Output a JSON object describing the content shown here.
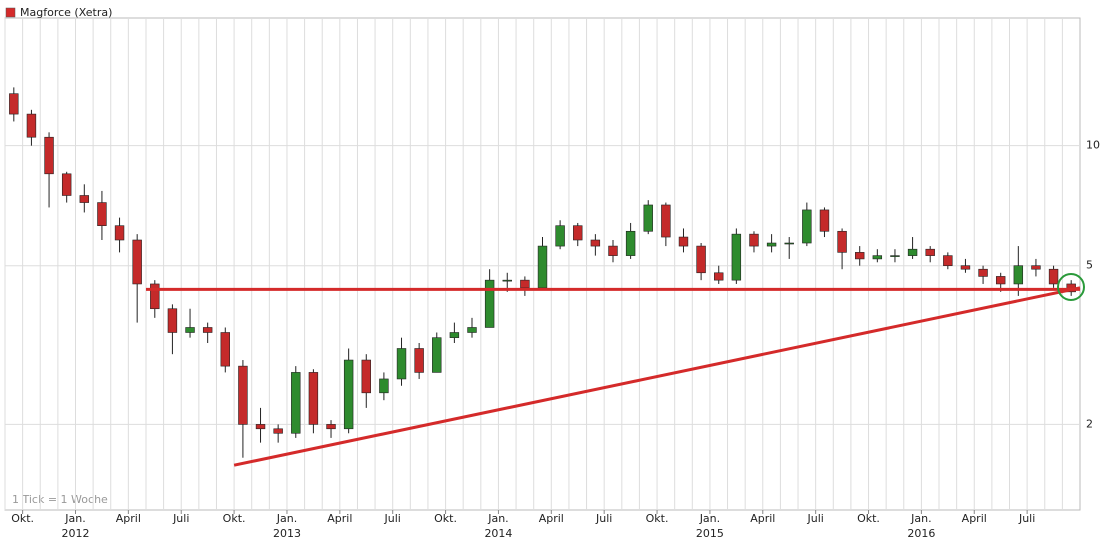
{
  "chart_data": {
    "type": "candlestick",
    "title": "Magforce (Xetra)",
    "note": "1 Tick = 1 Woche",
    "log_scale": true,
    "grid": true,
    "up_color": "#2e8b2e",
    "down_color": "#c42a2a",
    "title_color": "#d42a2a",
    "x": [
      "2011-09",
      "2011-10",
      "2011-11",
      "2011-12",
      "2012-01",
      "2012-02",
      "2012-03",
      "2012-04",
      "2012-05",
      "2012-06",
      "2012-07",
      "2012-08",
      "2012-09",
      "2012-10",
      "2012-11",
      "2012-12",
      "2013-01",
      "2013-02",
      "2013-03",
      "2013-04",
      "2013-05",
      "2013-06",
      "2013-07",
      "2013-08",
      "2013-09",
      "2013-10",
      "2013-11",
      "2013-12",
      "2014-01",
      "2014-02",
      "2014-03",
      "2014-04",
      "2014-05",
      "2014-06",
      "2014-07",
      "2014-08",
      "2014-09",
      "2014-10",
      "2014-11",
      "2014-12",
      "2015-01",
      "2015-02",
      "2015-03",
      "2015-04",
      "2015-05",
      "2015-06",
      "2015-07",
      "2015-08",
      "2015-09",
      "2015-10",
      "2015-11",
      "2015-12",
      "2016-01",
      "2016-02",
      "2016-03",
      "2016-04",
      "2016-05",
      "2016-06",
      "2016-07",
      "2016-08",
      "2016-09"
    ],
    "open": [
      13.5,
      12.0,
      10.5,
      8.5,
      7.5,
      7.2,
      6.3,
      5.8,
      4.5,
      3.9,
      3.4,
      3.5,
      3.4,
      2.8,
      2.0,
      1.95,
      1.9,
      2.7,
      2.0,
      1.95,
      2.9,
      2.4,
      2.6,
      3.1,
      2.7,
      3.3,
      3.4,
      3.5,
      4.6,
      4.6,
      4.4,
      5.6,
      6.3,
      5.8,
      5.6,
      5.3,
      6.1,
      7.1,
      5.9,
      5.6,
      4.8,
      4.6,
      6.0,
      5.6,
      5.7,
      5.7,
      6.9,
      6.1,
      5.4,
      5.2,
      5.3,
      5.3,
      5.5,
      5.3,
      5.0,
      4.9,
      4.7,
      4.5,
      5.0,
      4.9,
      4.5
    ],
    "high": [
      14.0,
      12.3,
      10.8,
      8.6,
      8.0,
      7.7,
      6.6,
      6.0,
      4.6,
      4.0,
      3.9,
      3.6,
      3.5,
      2.9,
      2.2,
      2.0,
      2.8,
      2.75,
      2.05,
      3.1,
      3.0,
      2.7,
      3.3,
      3.2,
      3.4,
      3.6,
      3.7,
      4.9,
      4.8,
      4.7,
      5.9,
      6.5,
      6.4,
      6.0,
      5.8,
      6.4,
      7.3,
      7.2,
      6.2,
      5.7,
      5.0,
      6.2,
      6.1,
      6.0,
      5.9,
      7.2,
      7.0,
      6.2,
      5.6,
      5.5,
      5.5,
      5.9,
      5.6,
      5.4,
      5.2,
      5.0,
      4.8,
      5.6,
      5.2,
      5.0,
      4.6
    ],
    "low": [
      11.5,
      10.0,
      7.0,
      7.2,
      6.8,
      5.8,
      5.4,
      3.6,
      3.7,
      3.0,
      3.3,
      3.2,
      2.7,
      1.65,
      1.8,
      1.8,
      1.85,
      1.9,
      1.85,
      1.9,
      2.2,
      2.3,
      2.5,
      2.6,
      2.7,
      3.2,
      3.3,
      3.5,
      4.3,
      4.2,
      4.4,
      5.5,
      5.6,
      5.3,
      5.1,
      5.2,
      6.0,
      5.6,
      5.4,
      4.6,
      4.5,
      4.5,
      5.4,
      5.4,
      5.2,
      5.6,
      5.9,
      4.9,
      5.0,
      5.1,
      5.1,
      5.2,
      5.1,
      4.9,
      4.8,
      4.5,
      4.3,
      4.2,
      4.7,
      4.4,
      4.2
    ],
    "close": [
      12.0,
      10.5,
      8.5,
      7.5,
      7.2,
      6.3,
      5.8,
      4.5,
      3.9,
      3.4,
      3.5,
      3.4,
      2.8,
      2.0,
      1.95,
      1.9,
      2.7,
      2.0,
      1.95,
      2.9,
      2.4,
      2.6,
      3.1,
      2.7,
      3.3,
      3.4,
      3.5,
      4.6,
      4.6,
      4.4,
      5.6,
      6.3,
      5.8,
      5.6,
      5.3,
      6.1,
      7.1,
      5.9,
      5.6,
      4.8,
      4.6,
      6.0,
      5.6,
      5.7,
      5.7,
      6.9,
      6.1,
      5.4,
      5.2,
      5.3,
      5.3,
      5.5,
      5.3,
      5.0,
      4.9,
      4.7,
      4.5,
      5.0,
      4.9,
      4.5,
      4.3
    ],
    "xlim": [
      "2011-09",
      "2016-10"
    ],
    "ylim": [
      1.22,
      20.9
    ],
    "yticks": [
      2,
      5,
      10
    ],
    "xticks": [
      {
        "value": "2011-10",
        "label": "Okt."
      },
      {
        "value": "2012-01",
        "label": "Jan."
      },
      {
        "value": "2012-04",
        "label": "April"
      },
      {
        "value": "2012-07",
        "label": "Juli"
      },
      {
        "value": "2012-10",
        "label": "Okt."
      },
      {
        "value": "2013-01",
        "label": "Jan."
      },
      {
        "value": "2013-04",
        "label": "April"
      },
      {
        "value": "2013-07",
        "label": "Juli"
      },
      {
        "value": "2013-10",
        "label": "Okt."
      },
      {
        "value": "2014-01",
        "label": "Jan."
      },
      {
        "value": "2014-04",
        "label": "April"
      },
      {
        "value": "2014-07",
        "label": "Juli"
      },
      {
        "value": "2014-10",
        "label": "Okt."
      },
      {
        "value": "2015-01",
        "label": "Jan."
      },
      {
        "value": "2015-04",
        "label": "April"
      },
      {
        "value": "2015-07",
        "label": "Juli"
      },
      {
        "value": "2015-10",
        "label": "Okt."
      },
      {
        "value": "2016-01",
        "label": "Jan."
      },
      {
        "value": "2016-04",
        "label": "April"
      },
      {
        "value": "2016-07",
        "label": "Juli"
      }
    ],
    "year_labels": [
      {
        "value": "2012-01",
        "label": "2012"
      },
      {
        "value": "2013-01",
        "label": "2013"
      },
      {
        "value": "2014-01",
        "label": "2014"
      },
      {
        "value": "2015-01",
        "label": "2015"
      },
      {
        "value": "2016-01",
        "label": "2016"
      }
    ],
    "lines": [
      {
        "color": "#d42a2a",
        "x": [
          "2012-05",
          "2016-10"
        ],
        "y": [
          4.36,
          4.36
        ]
      },
      {
        "color": "#d42a2a",
        "x": [
          "2012-10",
          "2016-10"
        ],
        "y": [
          1.58,
          4.4
        ]
      }
    ]
  }
}
